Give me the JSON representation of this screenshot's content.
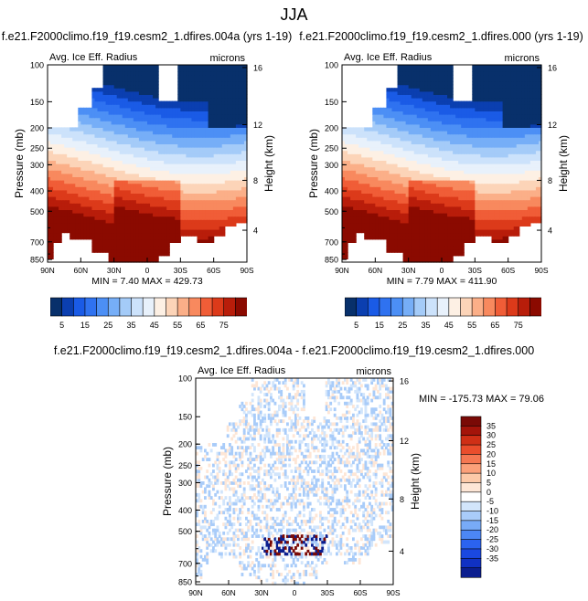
{
  "suptitle": "JJA",
  "lbl_colors": [
    "#08306b",
    "#0b3fb0",
    "#1a5be6",
    "#2f72f0",
    "#4c8ff5",
    "#76aef7",
    "#a4cbf8",
    "#cce2fb",
    "#e8f1fb",
    "#fdf0e4",
    "#fcd4b8",
    "#fbaf88",
    "#f8895e",
    "#f05d37",
    "#dc3a1a",
    "#b81d0a",
    "#8b0a00"
  ],
  "diff_colors": [
    "#0b1e8f",
    "#1031c3",
    "#1a48e0",
    "#2b63ef",
    "#4c87f5",
    "#78abf7",
    "#a9ccf9",
    "#d2e5fb",
    "#ffffff",
    "#fde6d6",
    "#fcc9a8",
    "#fba07a",
    "#f57752",
    "#ea4d2c",
    "#cf2f16",
    "#a4140a",
    "#7a0a06"
  ],
  "top_left": {
    "title": "f.e21.F2000climo.f19_f19.cesm2_1.dfires.004a (yrs 1-19)",
    "left_string": "Avg. Ice Eff. Radius",
    "right_string": "microns",
    "min_max": "MIN =   7.40   MAX = 429.73"
  },
  "top_right": {
    "title": "f.e21.F2000climo.f19_f19.cesm2_1.dfires.000 (yrs 1-19)",
    "left_string": "Avg. Ice Eff. Radius",
    "right_string": "microns",
    "min_max": "MIN =   7.79   MAX = 411.90"
  },
  "bottom": {
    "title": "f.e21.F2000climo.f19_f19.cesm2_1.dfires.004a - f.e21.F2000climo.f19_f19.cesm2_1.dfires.000",
    "left_string": "Avg. Ice Eff. Radius",
    "right_string": "microns",
    "min_max": "MIN = -175.73   MAX =  79.06"
  },
  "chart_data": [
    {
      "type": "heatmap",
      "title": "f.e21.F2000climo.f19_f19.cesm2_1.dfires.004a (yrs 1-19)",
      "xlabel": "",
      "ylabel": "Pressure (mb)",
      "y2label": "Height (km)",
      "x_ticks": [
        "90N",
        "60N",
        "30N",
        "0",
        "30S",
        "60S",
        "90S"
      ],
      "y_ticks": [
        "100",
        "150",
        "200",
        "250",
        "300",
        "400",
        "500",
        "700",
        "850"
      ],
      "y2_ticks": [
        "16",
        "12",
        "8",
        "4"
      ],
      "ylim": [
        875,
        100
      ],
      "y_scale": "log",
      "colorbar_labels": [
        "5",
        "15",
        "25",
        "35",
        "45",
        "55",
        "65",
        "75"
      ],
      "min": 7.4,
      "max": 429.73
    },
    {
      "type": "heatmap",
      "title": "f.e21.F2000climo.f19_f19.cesm2_1.dfires.000 (yrs 1-19)",
      "xlabel": "",
      "ylabel": "Pressure (mb)",
      "y2label": "Height (km)",
      "x_ticks": [
        "90N",
        "60N",
        "30N",
        "0",
        "30S",
        "60S",
        "90S"
      ],
      "y_ticks": [
        "100",
        "150",
        "200",
        "250",
        "300",
        "400",
        "500",
        "700",
        "850"
      ],
      "y2_ticks": [
        "16",
        "12",
        "8",
        "4"
      ],
      "ylim": [
        875,
        100
      ],
      "y_scale": "log",
      "colorbar_labels": [
        "5",
        "15",
        "25",
        "35",
        "45",
        "55",
        "65",
        "75"
      ],
      "min": 7.79,
      "max": 411.9
    },
    {
      "type": "heatmap",
      "title": "f.e21.F2000climo.f19_f19.cesm2_1.dfires.004a - f.e21.F2000climo.f19_f19.cesm2_1.dfires.000",
      "xlabel": "",
      "ylabel": "Pressure (mb)",
      "y2label": "Height (km)",
      "x_ticks": [
        "90N",
        "60N",
        "30N",
        "0",
        "30S",
        "60S",
        "90S"
      ],
      "y_ticks": [
        "100",
        "150",
        "200",
        "250",
        "300",
        "400",
        "500",
        "700",
        "850"
      ],
      "y2_ticks": [
        "16",
        "12",
        "8",
        "4"
      ],
      "ylim": [
        875,
        100
      ],
      "y_scale": "log",
      "colorbar_labels": [
        "35",
        "30",
        "25",
        "20",
        "15",
        "10",
        "5",
        "0",
        "-5",
        "-10",
        "-15",
        "-20",
        "-25",
        "-30",
        "-35"
      ],
      "min": -175.73,
      "max": 79.06
    }
  ]
}
